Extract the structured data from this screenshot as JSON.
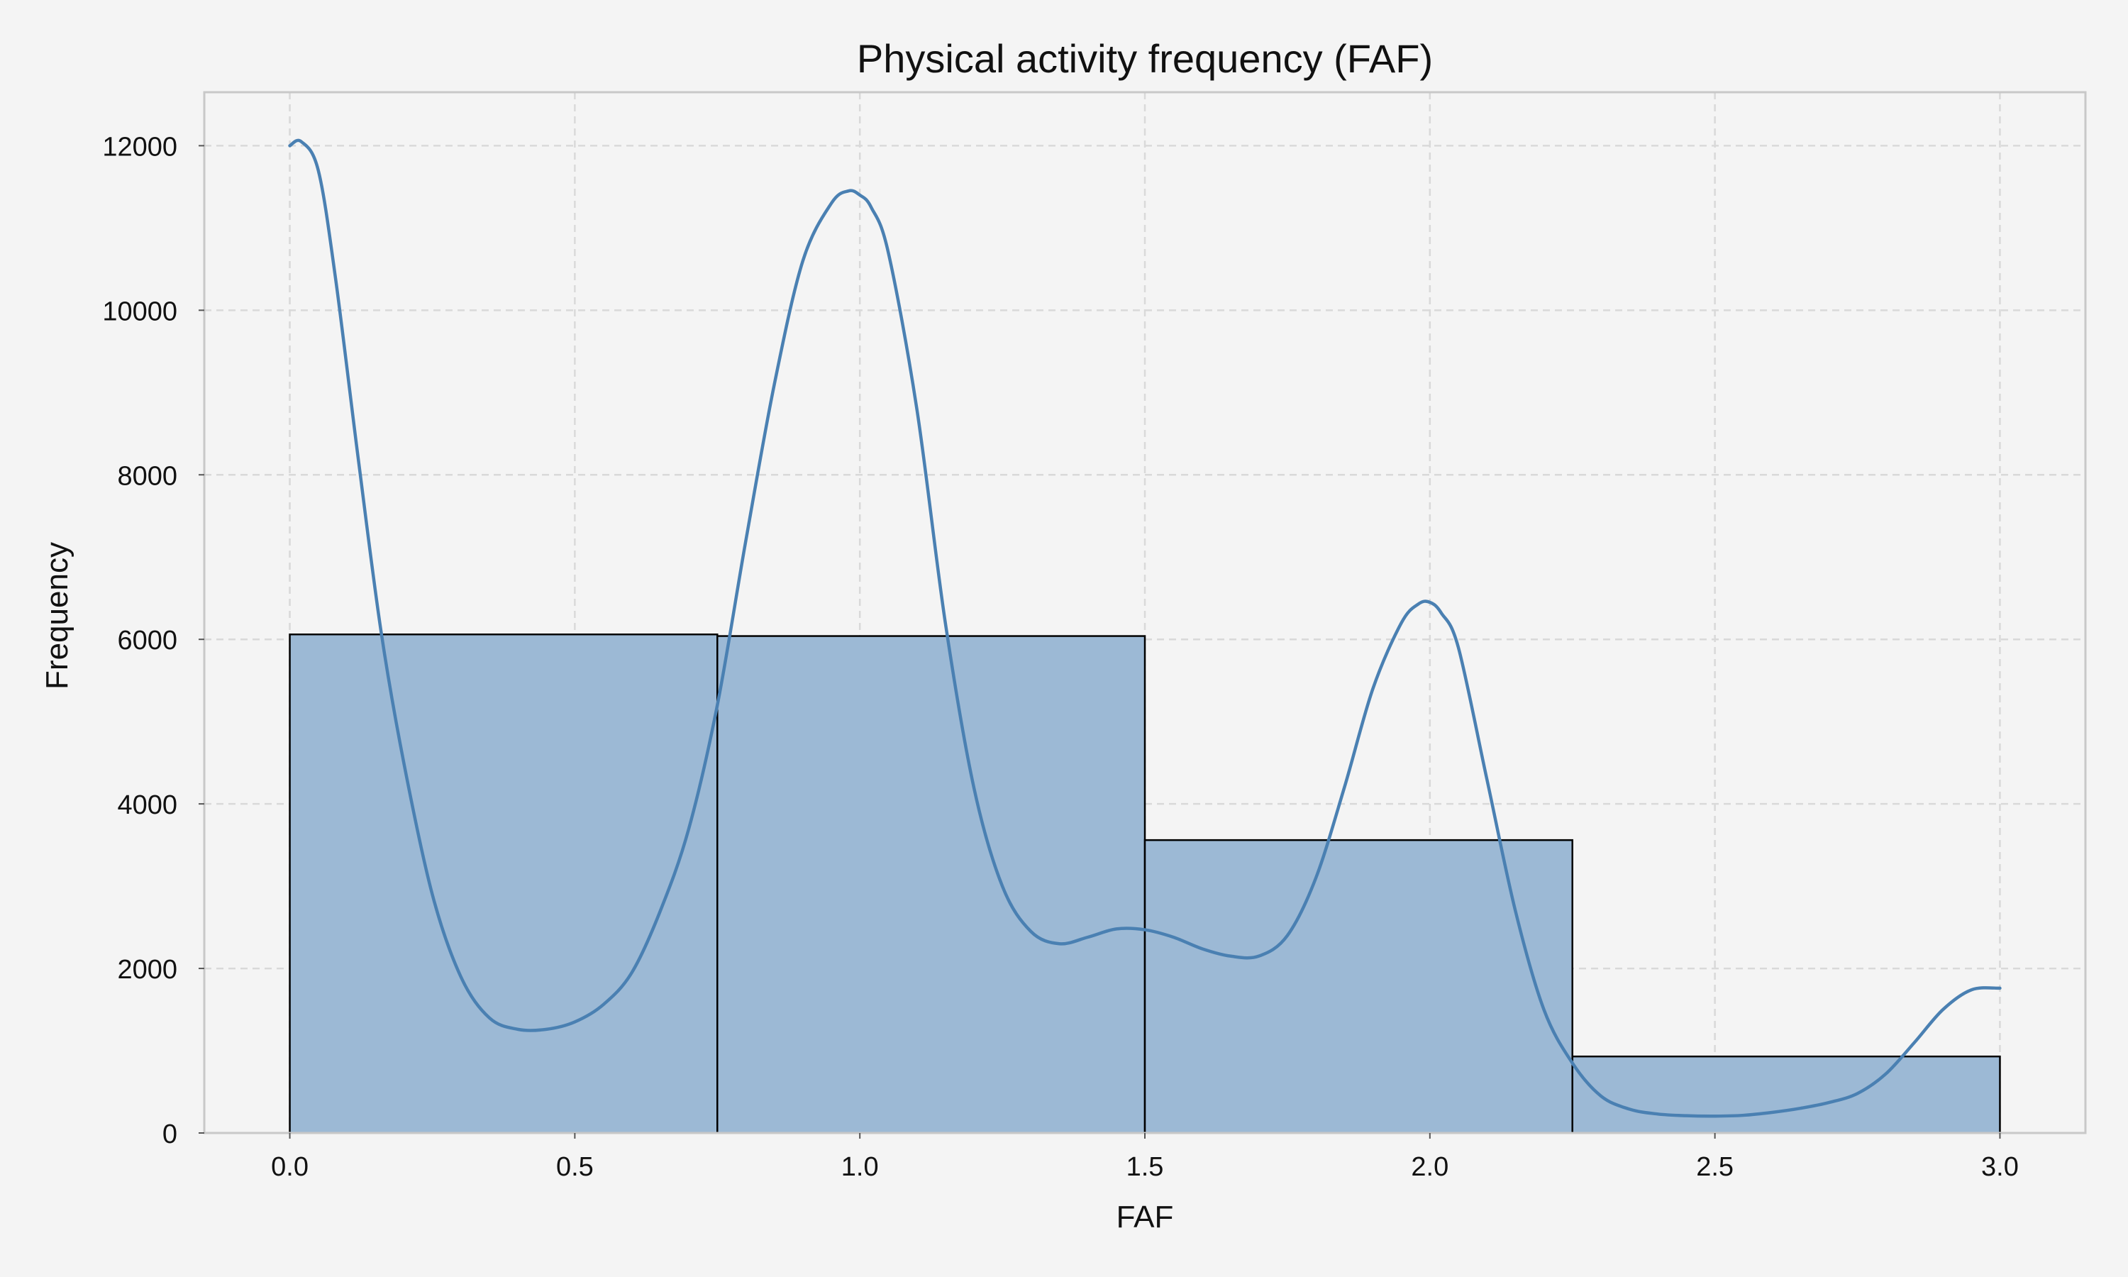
{
  "chart_data": {
    "type": "bar",
    "subtype": "histogram_with_kde",
    "title": "Physical activity frequency (FAF)",
    "xlabel": "FAF",
    "ylabel": "Frequency",
    "xlim": [
      -0.15,
      3.15
    ],
    "ylim": [
      0,
      12650
    ],
    "xticks": [
      0.0,
      0.5,
      1.0,
      1.5,
      2.0,
      2.5,
      3.0
    ],
    "xtick_labels": [
      "0.0",
      "0.5",
      "1.0",
      "1.5",
      "2.0",
      "2.5",
      "3.0"
    ],
    "yticks": [
      0,
      2000,
      4000,
      6000,
      8000,
      10000,
      12000
    ],
    "ytick_labels": [
      "0",
      "2000",
      "4000",
      "6000",
      "8000",
      "10000",
      "12000"
    ],
    "grid": true,
    "bins": [
      {
        "start": 0.0,
        "end": 0.75,
        "value": 6060
      },
      {
        "start": 0.75,
        "end": 1.5,
        "value": 6040
      },
      {
        "start": 1.5,
        "end": 2.25,
        "value": 3560
      },
      {
        "start": 2.25,
        "end": 3.0,
        "value": 930
      }
    ],
    "kde": {
      "x": [
        0.0,
        0.02,
        0.05,
        0.08,
        0.12,
        0.16,
        0.2,
        0.25,
        0.3,
        0.35,
        0.4,
        0.45,
        0.5,
        0.55,
        0.6,
        0.65,
        0.7,
        0.75,
        0.8,
        0.85,
        0.9,
        0.95,
        0.98,
        1.0,
        1.02,
        1.05,
        1.1,
        1.15,
        1.2,
        1.25,
        1.3,
        1.35,
        1.4,
        1.45,
        1.5,
        1.55,
        1.6,
        1.65,
        1.7,
        1.75,
        1.8,
        1.85,
        1.9,
        1.95,
        1.98,
        2.0,
        2.02,
        2.05,
        2.1,
        2.15,
        2.2,
        2.25,
        2.3,
        2.35,
        2.4,
        2.45,
        2.5,
        2.55,
        2.6,
        2.65,
        2.7,
        2.75,
        2.8,
        2.85,
        2.9,
        2.95,
        3.0
      ],
      "y": [
        12000,
        12050,
        11700,
        10400,
        8200,
        6100,
        4500,
        2900,
        1900,
        1400,
        1260,
        1260,
        1350,
        1560,
        1950,
        2700,
        3700,
        5200,
        7200,
        9100,
        10600,
        11300,
        11450,
        11400,
        11250,
        10700,
        8800,
        6200,
        4200,
        3000,
        2450,
        2300,
        2380,
        2480,
        2470,
        2380,
        2240,
        2150,
        2150,
        2400,
        3100,
        4200,
        5400,
        6200,
        6430,
        6450,
        6320,
        5900,
        4300,
        2700,
        1500,
        850,
        450,
        290,
        230,
        210,
        205,
        215,
        250,
        300,
        370,
        480,
        720,
        1100,
        1500,
        1740,
        1760
      ]
    },
    "colors": {
      "bar_fill": "#9cb9d5",
      "bar_edge": "#000000",
      "kde_line": "#4a80b2",
      "background": "#f4f4f4"
    }
  }
}
